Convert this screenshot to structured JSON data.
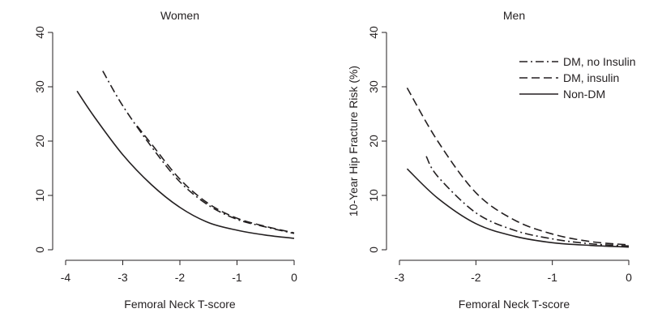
{
  "chart_data": [
    {
      "type": "line",
      "title": "Women",
      "xlabel": "Femoral Neck T-score",
      "ylabel": "",
      "xlim": [
        -4,
        0
      ],
      "ylim": [
        0,
        40
      ],
      "x_ticks": [
        -4,
        -3,
        -2,
        -1,
        0
      ],
      "y_ticks": [
        0,
        10,
        20,
        30,
        40
      ],
      "legend": null,
      "series": [
        {
          "style": "dashdot",
          "x": [
            -3.35,
            -3.0,
            -2.5,
            -2.0,
            -1.5,
            -1.0,
            -0.5,
            0.0
          ],
          "y": [
            32.9,
            26.5,
            19.0,
            12.5,
            8.2,
            5.6,
            4.2,
            3.0
          ]
        },
        {
          "style": "dashed",
          "x": [
            -2.75,
            -2.5,
            -2.0,
            -1.5,
            -1.0,
            -0.5,
            0.0
          ],
          "y": [
            22.8,
            19.5,
            13.0,
            8.5,
            5.8,
            4.3,
            3.1
          ]
        },
        {
          "style": "solid",
          "x": [
            -3.8,
            -3.5,
            -3.0,
            -2.5,
            -2.0,
            -1.5,
            -1.0,
            -0.5,
            0.0
          ],
          "y": [
            29.2,
            24.5,
            17.5,
            12.0,
            7.8,
            5.0,
            3.6,
            2.7,
            2.1
          ]
        }
      ]
    },
    {
      "type": "line",
      "title": "Men",
      "xlabel": "Femoral Neck T-score",
      "ylabel": "10-Year Hip Fracture Risk (%)",
      "xlim": [
        -3,
        0
      ],
      "ylim": [
        0,
        40
      ],
      "x_ticks": [
        -3,
        -2,
        -1,
        0
      ],
      "y_ticks": [
        0,
        10,
        20,
        30,
        40
      ],
      "legend": "top-right",
      "series": [
        {
          "name": "DM, no Insulin",
          "style": "dashdot",
          "x": [
            -2.65,
            -2.5,
            -2.0,
            -1.5,
            -1.0,
            -0.5,
            0.0
          ],
          "y": [
            17.2,
            13.5,
            6.8,
            3.6,
            2.0,
            1.1,
            0.7
          ]
        },
        {
          "name": "DM, insulin",
          "style": "dashed",
          "x": [
            -2.9,
            -2.5,
            -2.0,
            -1.5,
            -1.0,
            -0.5,
            0.0
          ],
          "y": [
            29.8,
            20.0,
            10.5,
            5.5,
            2.9,
            1.5,
            0.9
          ]
        },
        {
          "name": "Non-DM",
          "style": "solid",
          "x": [
            -2.9,
            -2.5,
            -2.0,
            -1.5,
            -1.0,
            -0.5,
            0.0
          ],
          "y": [
            14.9,
            9.5,
            4.8,
            2.5,
            1.3,
            0.8,
            0.5
          ]
        }
      ]
    }
  ]
}
